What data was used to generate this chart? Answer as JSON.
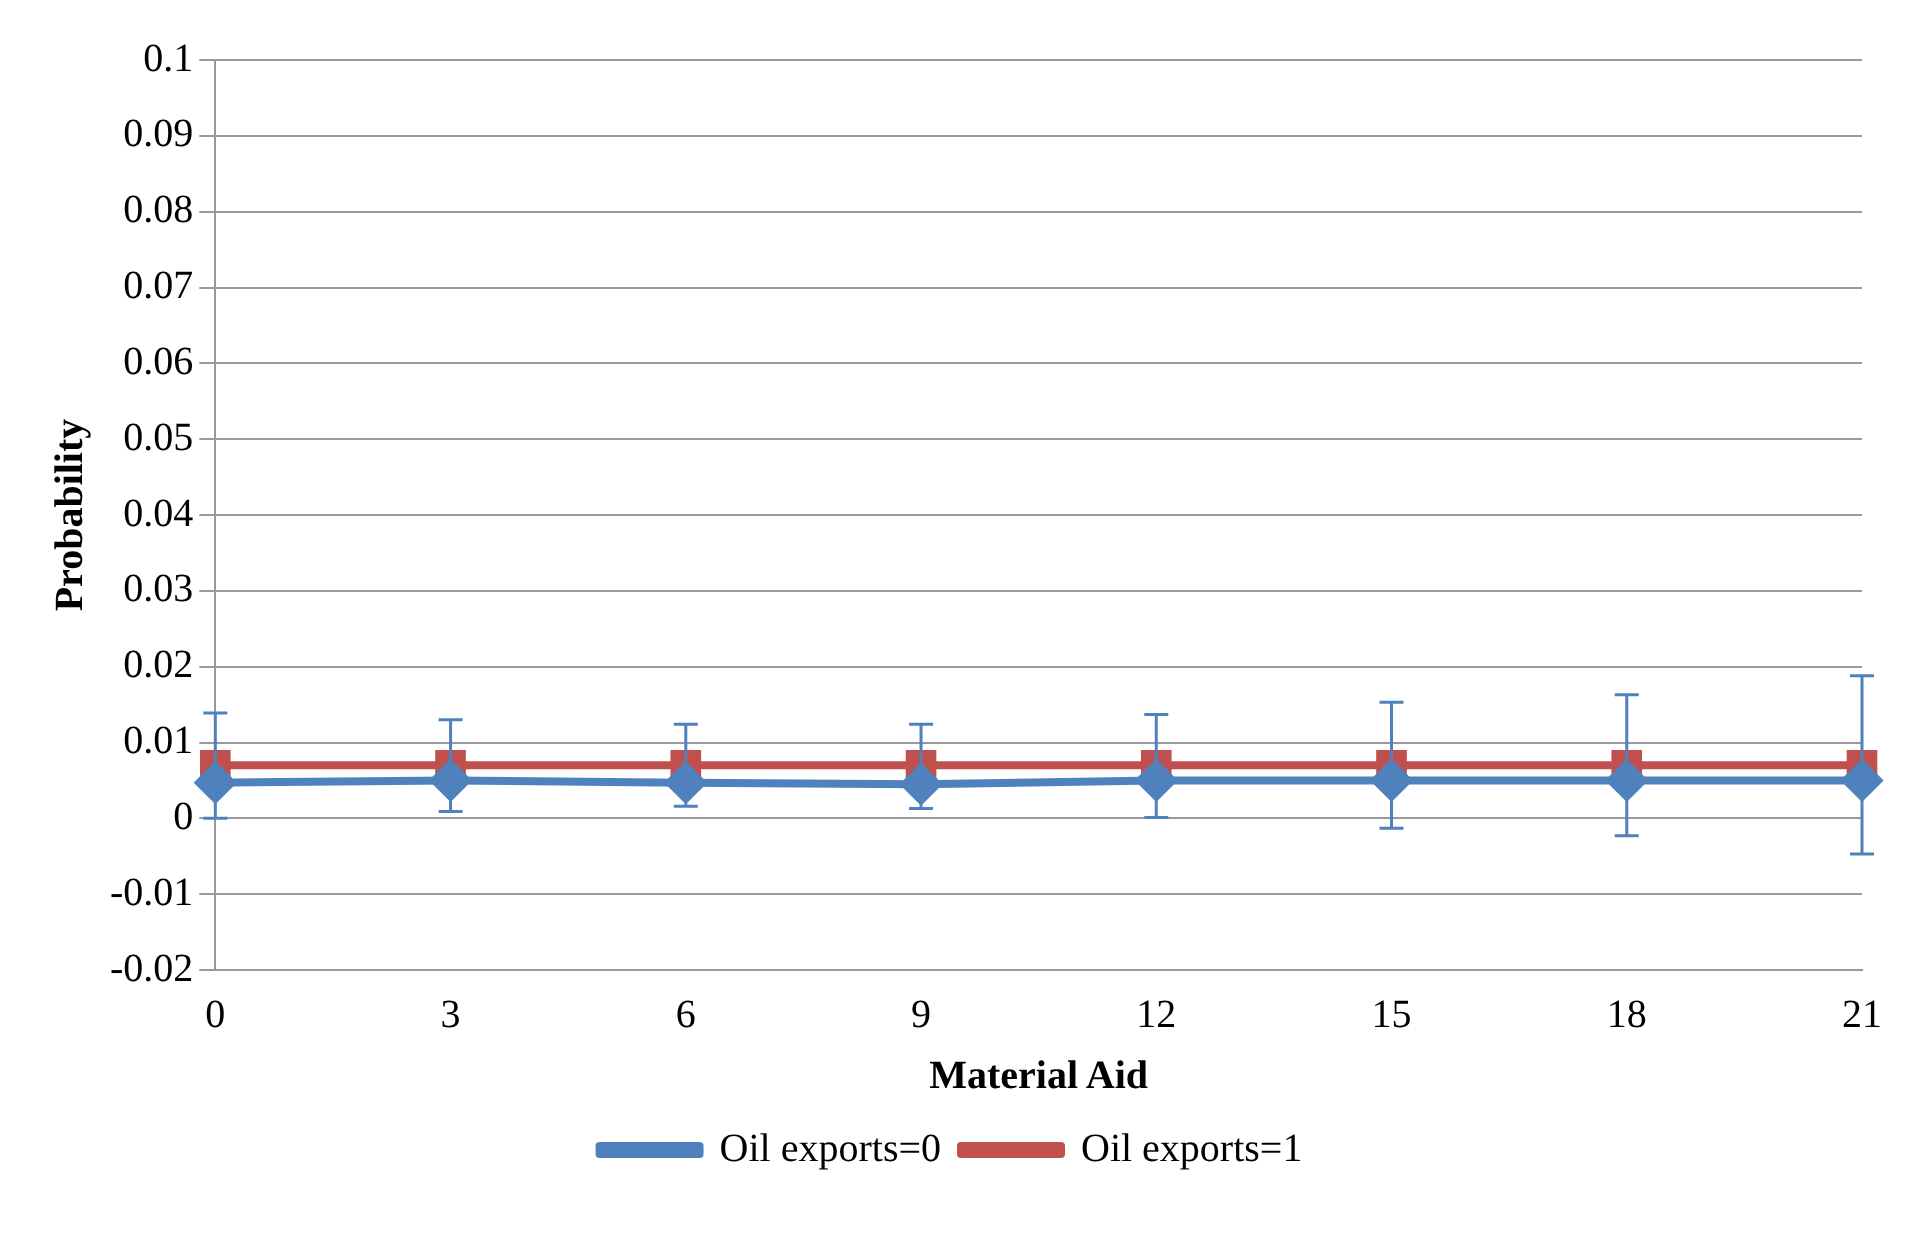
{
  "chart_data": {
    "type": "line",
    "xlabel": "Material Aid",
    "ylabel": "Probability",
    "categories": [
      "0",
      "3",
      "6",
      "9",
      "12",
      "15",
      "18",
      "21"
    ],
    "series": [
      {
        "name": "Oil exports=0",
        "color": "#4f81bd",
        "marker": "diamond",
        "values": [
          0.0047,
          0.005,
          0.0047,
          0.0045,
          0.005,
          0.005,
          0.005,
          0.005
        ],
        "errors": [
          [
            0,
            0.0139
          ],
          [
            0.0009,
            0.013
          ],
          [
            0.0016,
            0.0124
          ],
          [
            0.0013,
            0.0124
          ],
          [
            0.0001,
            0.0137
          ],
          [
            -0.0013,
            0.0153
          ],
          [
            -0.0023,
            0.0163
          ],
          [
            -0.0047,
            0.0188
          ]
        ]
      },
      {
        "name": "Oil exports=1",
        "color": "#c0504d",
        "marker": "square",
        "values": [
          0.007,
          0.007,
          0.007,
          0.007,
          0.007,
          0.007,
          0.007,
          0.007
        ]
      }
    ],
    "ylim": [
      -0.02,
      0.1
    ],
    "yticks": [
      -0.02,
      -0.01,
      0,
      0.01,
      0.02,
      0.03,
      0.04,
      0.05,
      0.06,
      0.07,
      0.08,
      0.09,
      0.1
    ],
    "grid": "y",
    "legend": "bottom"
  }
}
